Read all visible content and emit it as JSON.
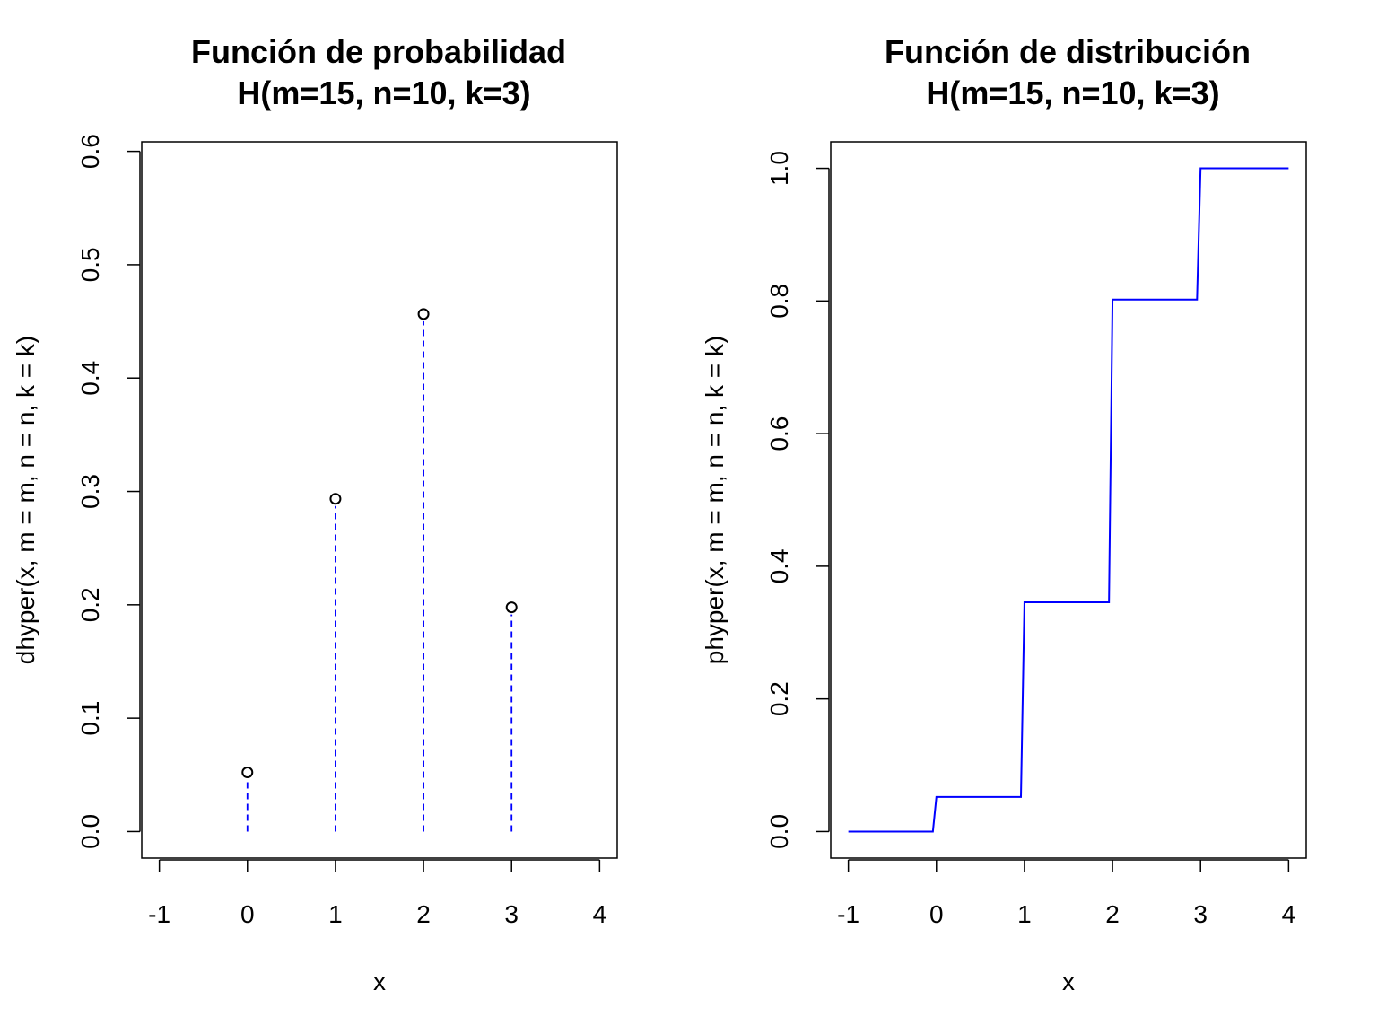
{
  "chart_data": [
    {
      "type": "scatter",
      "title": "Función de probabilidad",
      "subtitle": "H(m=15, n=10, k=3)",
      "xlabel": "x",
      "ylabel": "dhyper(x, m = m, n = n, k = k)",
      "xlim": [
        -1.2,
        4.2
      ],
      "ylim": [
        -0.0234,
        0.6084
      ],
      "xticks": [
        "-1",
        "0",
        "1",
        "2",
        "3",
        "4"
      ],
      "yticks": [
        "0.0",
        "0.1",
        "0.2",
        "0.3",
        "0.4",
        "0.5",
        "0.6"
      ],
      "x": [
        0,
        1,
        2,
        3
      ],
      "y": [
        0.0522,
        0.2935,
        0.4565,
        0.1978
      ],
      "stem_color": "#0000ff",
      "point_color": "#000000",
      "grid": false
    },
    {
      "type": "line",
      "title": "Función de distribución",
      "subtitle": "H(m=15, n=10, k=3)",
      "xlabel": "x",
      "ylabel": "phyper(x, m = m, n = n, k = k)",
      "xlim": [
        -1.2,
        4.2
      ],
      "ylim": [
        -0.04,
        1.04
      ],
      "xticks": [
        "-1",
        "0",
        "1",
        "2",
        "3",
        "4"
      ],
      "yticks": [
        "0.0",
        "0.2",
        "0.4",
        "0.6",
        "0.8",
        "1.0"
      ],
      "x": [
        -1,
        -0.04,
        0,
        0.96,
        1,
        1.96,
        2,
        2.96,
        3,
        4
      ],
      "y": [
        0,
        0,
        0.0522,
        0.0522,
        0.3457,
        0.3457,
        0.8022,
        0.8022,
        1,
        1
      ],
      "line_color": "#0000ff",
      "grid": false
    }
  ]
}
